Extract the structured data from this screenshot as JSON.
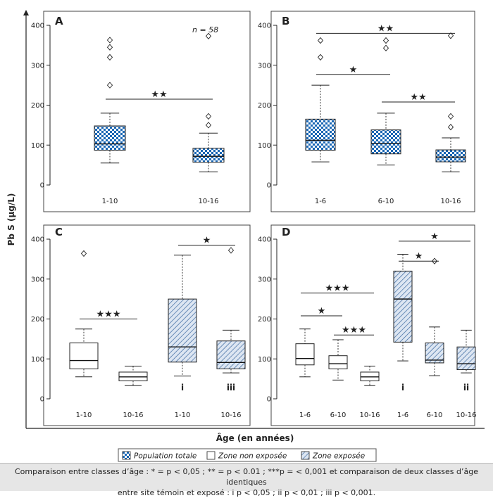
{
  "figure": {
    "ylabel": "Pb S (µg/L)",
    "xlabel": "Âge (en années)",
    "legend": [
      {
        "key": "total",
        "label": "Population totale"
      },
      {
        "key": "non",
        "label": "Zone non exposée"
      },
      {
        "key": "exp",
        "label": "Zone exposée"
      }
    ],
    "caption_line1": "Comparaison entre classes d’âge : * = p < 0,05 ; ** = p < 0.01 ; ***p = < 0,001 et comparaison de deux classes d’âge identiques",
    "caption_line2": "entre site témoin et exposé : i p < 0,05 ; ii p < 0,01 ; iii p < 0,001."
  },
  "colors": {
    "checker": "#1a67b5",
    "hatch": "#2f5f9a",
    "hatch_fill": "#dde6f2"
  },
  "chart_data": [
    {
      "panel": "A",
      "type": "boxplot",
      "ylim": [
        0,
        400
      ],
      "yticks": [
        0,
        100,
        200,
        300,
        400
      ],
      "annotation": "n = 58",
      "groups": [
        {
          "label": "1-10",
          "style": "total",
          "min": 55,
          "q1": 87,
          "median": 103,
          "q3": 148,
          "max": 180,
          "outliers": [
            250,
            320,
            345,
            363
          ]
        },
        {
          "label": "10-16",
          "style": "total",
          "min": 33,
          "q1": 57,
          "median": 72,
          "q3": 92,
          "max": 130,
          "outliers": [
            150,
            172,
            373
          ]
        }
      ],
      "comparisons": [
        {
          "from": 0,
          "to": 1,
          "y": 215,
          "marks": "★★"
        }
      ]
    },
    {
      "panel": "B",
      "type": "boxplot",
      "ylim": [
        0,
        400
      ],
      "yticks": [
        0,
        100,
        200,
        300,
        400
      ],
      "groups": [
        {
          "label": "1-6",
          "style": "total",
          "min": 58,
          "q1": 87,
          "median": 112,
          "q3": 165,
          "max": 250,
          "outliers": [
            320,
            362
          ]
        },
        {
          "label": "6-10",
          "style": "total",
          "min": 50,
          "q1": 78,
          "median": 104,
          "q3": 138,
          "max": 180,
          "outliers": [
            343,
            362
          ]
        },
        {
          "label": "10-16",
          "style": "total",
          "min": 33,
          "q1": 58,
          "median": 70,
          "q3": 88,
          "max": 118,
          "outliers": [
            145,
            172,
            374
          ]
        }
      ],
      "comparisons": [
        {
          "from": 0,
          "to": 2,
          "y": 380,
          "marks": "★★"
        },
        {
          "from": 0,
          "to": 1,
          "y": 277,
          "marks": "★"
        },
        {
          "from": 1,
          "to": 2,
          "y": 208,
          "marks": "★★"
        }
      ]
    },
    {
      "panel": "C",
      "type": "boxplot",
      "ylim": [
        0,
        400
      ],
      "yticks": [
        0,
        100,
        200,
        300,
        400
      ],
      "groups": [
        {
          "label": "1-10",
          "style": "non",
          "min": 55,
          "q1": 75,
          "median": 96,
          "q3": 140,
          "max": 175,
          "outliers": [
            364
          ],
          "sig": ""
        },
        {
          "label": "10-16",
          "style": "non",
          "min": 33,
          "q1": 45,
          "median": 55,
          "q3": 67,
          "max": 82,
          "outliers": [],
          "sig": ""
        },
        {
          "label": "1-10",
          "style": "exp",
          "min": 57,
          "q1": 92,
          "median": 130,
          "q3": 250,
          "max": 360,
          "outliers": [],
          "sig": "i"
        },
        {
          "label": "10-16",
          "style": "exp",
          "min": 65,
          "q1": 75,
          "median": 91,
          "q3": 145,
          "max": 172,
          "outliers": [
            372
          ],
          "sig": "iii"
        }
      ],
      "comparisons": [
        {
          "from": 0,
          "to": 1,
          "y": 200,
          "marks": "★★★"
        },
        {
          "from": 2,
          "to": 3,
          "y": 385,
          "marks": "★"
        }
      ]
    },
    {
      "panel": "D",
      "type": "boxplot",
      "ylim": [
        0,
        400
      ],
      "yticks": [
        0,
        100,
        200,
        300,
        400
      ],
      "groups": [
        {
          "label": "1-6",
          "style": "non",
          "min": 55,
          "q1": 85,
          "median": 101,
          "q3": 138,
          "max": 175,
          "outliers": [],
          "sig": ""
        },
        {
          "label": "6-10",
          "style": "non",
          "min": 47,
          "q1": 75,
          "median": 88,
          "q3": 108,
          "max": 148,
          "outliers": [],
          "sig": ""
        },
        {
          "label": "10-16",
          "style": "non",
          "min": 33,
          "q1": 45,
          "median": 55,
          "q3": 67,
          "max": 82,
          "outliers": [],
          "sig": ""
        },
        {
          "label": "1-6",
          "style": "exp",
          "min": 95,
          "q1": 142,
          "median": 250,
          "q3": 320,
          "max": 362,
          "outliers": [],
          "sig": "i"
        },
        {
          "label": "6-10",
          "style": "exp",
          "min": 58,
          "q1": 90,
          "median": 97,
          "q3": 140,
          "max": 180,
          "outliers": [
            345
          ],
          "sig": ""
        },
        {
          "label": "10-16",
          "style": "exp",
          "min": 65,
          "q1": 73,
          "median": 88,
          "q3": 130,
          "max": 172,
          "outliers": [],
          "sig": "ii"
        }
      ],
      "comparisons": [
        {
          "from": 0,
          "to": 2,
          "y": 265,
          "marks": "★★★"
        },
        {
          "from": 0,
          "to": 1,
          "y": 208,
          "marks": "★"
        },
        {
          "from": 1,
          "to": 2,
          "y": 160,
          "marks": "★★★"
        },
        {
          "from": 3,
          "to": 5,
          "y": 395,
          "marks": "★"
        },
        {
          "from": 3,
          "to": 4,
          "y": 345,
          "marks": "★"
        }
      ]
    }
  ]
}
